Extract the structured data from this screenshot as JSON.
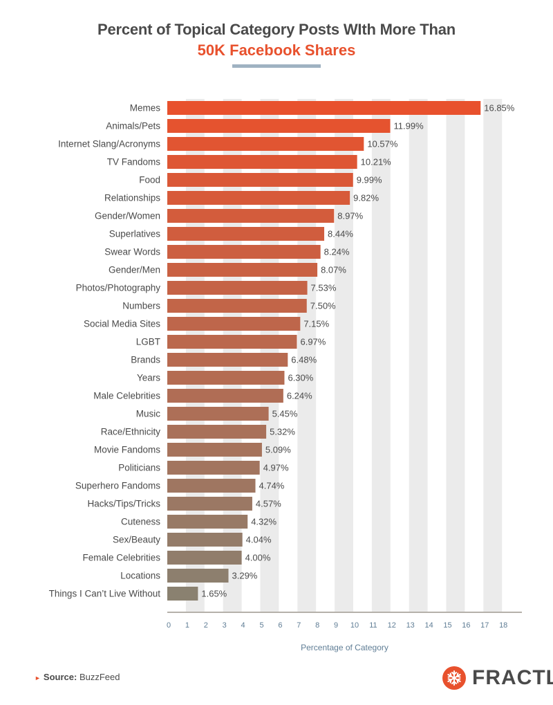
{
  "title": {
    "line1": "Percent of Topical Category Posts WIth More Than",
    "line2": "50K Facebook Shares"
  },
  "chart_data": {
    "type": "bar",
    "orientation": "horizontal",
    "categories": [
      "Memes",
      "Animals/Pets",
      "Internet Slang/Acronyms",
      "TV Fandoms",
      "Food",
      "Relationships",
      "Gender/Women",
      "Superlatives",
      "Swear Words",
      "Gender/Men",
      "Photos/Photography",
      "Numbers",
      "Social Media Sites",
      "LGBT",
      "Brands",
      "Years",
      "Male Celebrities",
      "Music",
      "Race/Ethnicity",
      "Movie Fandoms",
      "Politicians",
      "Superhero Fandoms",
      "Hacks/Tips/Tricks",
      "Cuteness",
      "Sex/Beauty",
      "Female Celebrities",
      "Locations",
      "Things I Can’t Live Without"
    ],
    "values": [
      16.85,
      11.99,
      10.57,
      10.21,
      9.99,
      9.82,
      8.97,
      8.44,
      8.24,
      8.07,
      7.53,
      7.5,
      7.15,
      6.97,
      6.48,
      6.3,
      6.24,
      5.45,
      5.32,
      5.09,
      4.97,
      4.74,
      4.57,
      4.32,
      4.04,
      4.0,
      3.29,
      1.65
    ],
    "value_labels": [
      "16.85%",
      "11.99%",
      "10.57%",
      "10.21%",
      "9.99%",
      "9.82%",
      "8.97%",
      "8.44%",
      "8.24%",
      "8.07%",
      "7.53%",
      "7.50%",
      "7.15%",
      "6.97%",
      "6.48%",
      "6.30%",
      "6.24%",
      "5.45%",
      "5.32%",
      "5.09%",
      "4.97%",
      "4.74%",
      "4.57%",
      "4.32%",
      "4.04%",
      "4.00%",
      "3.29%",
      "1.65%"
    ],
    "xticks": [
      "0",
      "1",
      "2",
      "3",
      "4",
      "5",
      "6",
      "7",
      "8",
      "9",
      "10",
      "11",
      "12",
      "13",
      "14",
      "15",
      "16",
      "17",
      "18"
    ],
    "xlim": [
      0,
      19
    ],
    "xlabel": "Percentage of Category",
    "grid": "alternating vertical bands",
    "color_start": "#e8512d",
    "color_end": "#8a8170",
    "band_color": "#ebebeb",
    "axis_color": "#b5b1aa"
  },
  "source": {
    "label": "Source:",
    "value": "BuzzFeed"
  },
  "logo": {
    "text": "FRACTL",
    "icon": "snowflake-icon"
  }
}
